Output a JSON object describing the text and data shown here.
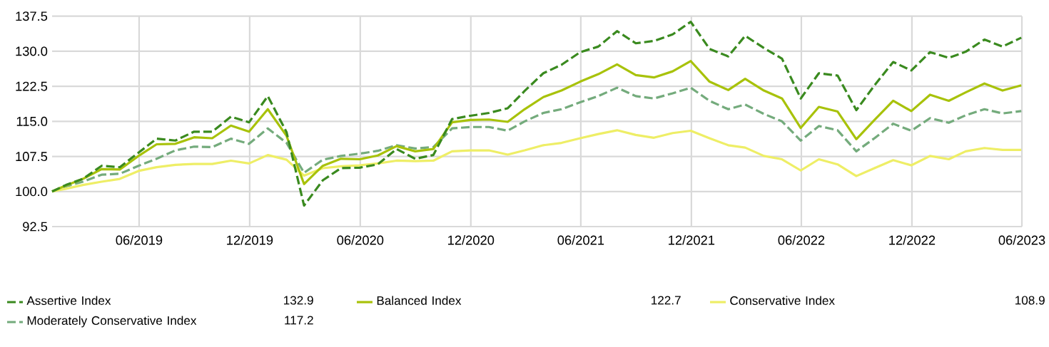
{
  "chart_data": {
    "type": "line",
    "x": [
      "2019-01-08",
      "2019-01-31",
      "2019-02-28",
      "2019-03-31",
      "2019-04-30",
      "2019-05-31",
      "2019-06-30",
      "2019-07-31",
      "2019-08-31",
      "2019-09-30",
      "2019-10-31",
      "2019-11-30",
      "2019-12-31",
      "2020-01-31",
      "2020-02-29",
      "2020-03-31",
      "2020-04-30",
      "2020-05-31",
      "2020-06-30",
      "2020-07-31",
      "2020-08-31",
      "2020-09-30",
      "2020-10-31",
      "2020-11-30",
      "2020-12-31",
      "2021-01-31",
      "2021-02-28",
      "2021-03-31",
      "2021-04-30",
      "2021-05-31",
      "2021-06-30",
      "2021-07-31",
      "2021-08-31",
      "2021-09-30",
      "2021-10-31",
      "2021-11-30",
      "2021-12-31",
      "2022-01-31",
      "2022-02-28",
      "2022-03-31",
      "2022-04-30",
      "2022-05-31",
      "2022-06-30",
      "2022-07-31",
      "2022-08-31",
      "2022-09-30",
      "2022-10-31",
      "2022-11-30",
      "2022-12-31",
      "2023-01-31",
      "2023-02-28",
      "2023-03-31",
      "2023-04-30",
      "2023-05-31"
    ],
    "xlim": [
      "2019-01-08",
      "2023-06-01"
    ],
    "xticks": [
      {
        "value": "2019-06-01",
        "label": "06/2019"
      },
      {
        "value": "2019-12-01",
        "label": "12/2019"
      },
      {
        "value": "2020-06-01",
        "label": "06/2020"
      },
      {
        "value": "2020-12-01",
        "label": "12/2020"
      },
      {
        "value": "2021-06-01",
        "label": "06/2021"
      },
      {
        "value": "2021-12-01",
        "label": "12/2021"
      },
      {
        "value": "2022-06-01",
        "label": "06/2022"
      },
      {
        "value": "2022-12-01",
        "label": "12/2022"
      },
      {
        "value": "2023-06-01",
        "label": "06/2023"
      }
    ],
    "ylim": [
      92.5,
      137.5
    ],
    "yticks": [
      92.5,
      {
        "value": 100,
        "label": "100.0"
      },
      107.5,
      {
        "value": 115,
        "label": "115.0"
      },
      122.5,
      {
        "value": 130,
        "label": "130.0"
      },
      137.5
    ],
    "grid": true,
    "legend": "bottom",
    "annotations": [
      "132.9",
      "122.7",
      "108.9",
      "117.2"
    ],
    "series": [
      {
        "name": "Assertive Index",
        "color": "#3a8a1f",
        "line_style": "dashed",
        "values": [
          100,
          101.4,
          102.7,
          105.5,
          105.2,
          108.3,
          111.3,
          110.9,
          112.8,
          112.8,
          116.0,
          114.8,
          120.4,
          112.7,
          97.0,
          102.4,
          105.0,
          105.1,
          105.8,
          109.1,
          107.0,
          107.8,
          115.5,
          116.2,
          116.8,
          117.8,
          121.5,
          125.3,
          127.1,
          129.8,
          131.0,
          134.3,
          131.7,
          132.2,
          133.6,
          136.3,
          130.5,
          128.9,
          133.3,
          130.7,
          128.4,
          119.9,
          125.3,
          124.8,
          117.4,
          122.7,
          127.7,
          125.9,
          129.8,
          128.6,
          129.9,
          132.5,
          131.0,
          132.9
        ]
      },
      {
        "name": "Balanced Index",
        "color": "#a8c20a",
        "line_style": "solid",
        "values": [
          100,
          101.3,
          102.7,
          104.8,
          104.7,
          107.6,
          110.1,
          110.2,
          111.6,
          111.4,
          114.1,
          112.8,
          117.6,
          111.9,
          101.6,
          105.5,
          107.0,
          106.9,
          107.7,
          109.7,
          108.6,
          109.1,
          114.8,
          115.3,
          115.4,
          114.9,
          117.6,
          120.2,
          121.6,
          123.5,
          125.1,
          127.2,
          124.9,
          124.4,
          125.7,
          127.9,
          123.5,
          121.7,
          124.1,
          121.6,
          119.9,
          113.6,
          118.1,
          117.1,
          111.2,
          115.3,
          119.4,
          117.2,
          120.7,
          119.4,
          121.2,
          123.1,
          121.6,
          122.7
        ]
      },
      {
        "name": "Conservative Index",
        "color": "#eeee66",
        "line_style": "solid",
        "values": [
          100,
          100.6,
          101.4,
          102.1,
          102.7,
          104.4,
          105.2,
          105.7,
          105.9,
          105.9,
          106.6,
          106.0,
          107.8,
          106.8,
          103.4,
          105.0,
          105.4,
          105.6,
          106.0,
          106.6,
          106.5,
          106.6,
          108.6,
          108.8,
          108.8,
          107.9,
          108.8,
          109.9,
          110.4,
          111.4,
          112.3,
          113.1,
          112.1,
          111.5,
          112.5,
          113.0,
          111.4,
          109.9,
          109.4,
          107.6,
          106.9,
          104.5,
          106.9,
          105.8,
          103.3,
          105.0,
          106.7,
          105.6,
          107.6,
          106.9,
          108.6,
          109.3,
          108.9,
          108.9
        ]
      },
      {
        "name": "Moderately Conservative Index",
        "color": "#74ab7c",
        "line_style": "dashed",
        "values": [
          100,
          101.1,
          102.1,
          103.6,
          103.8,
          105.5,
          107.0,
          108.8,
          109.6,
          109.5,
          111.3,
          110.2,
          113.5,
          110.4,
          104.0,
          106.8,
          107.6,
          108.1,
          108.7,
          109.9,
          109.2,
          109.5,
          113.5,
          113.8,
          113.8,
          113.0,
          115.0,
          116.8,
          117.6,
          119.1,
          120.4,
          122.2,
          120.4,
          119.9,
          121.0,
          122.2,
          119.4,
          117.6,
          118.6,
          116.6,
          115.0,
          110.9,
          114.0,
          113.1,
          108.6,
          111.4,
          114.5,
          113.0,
          115.7,
          114.7,
          116.3,
          117.6,
          116.7,
          117.2
        ]
      }
    ]
  }
}
